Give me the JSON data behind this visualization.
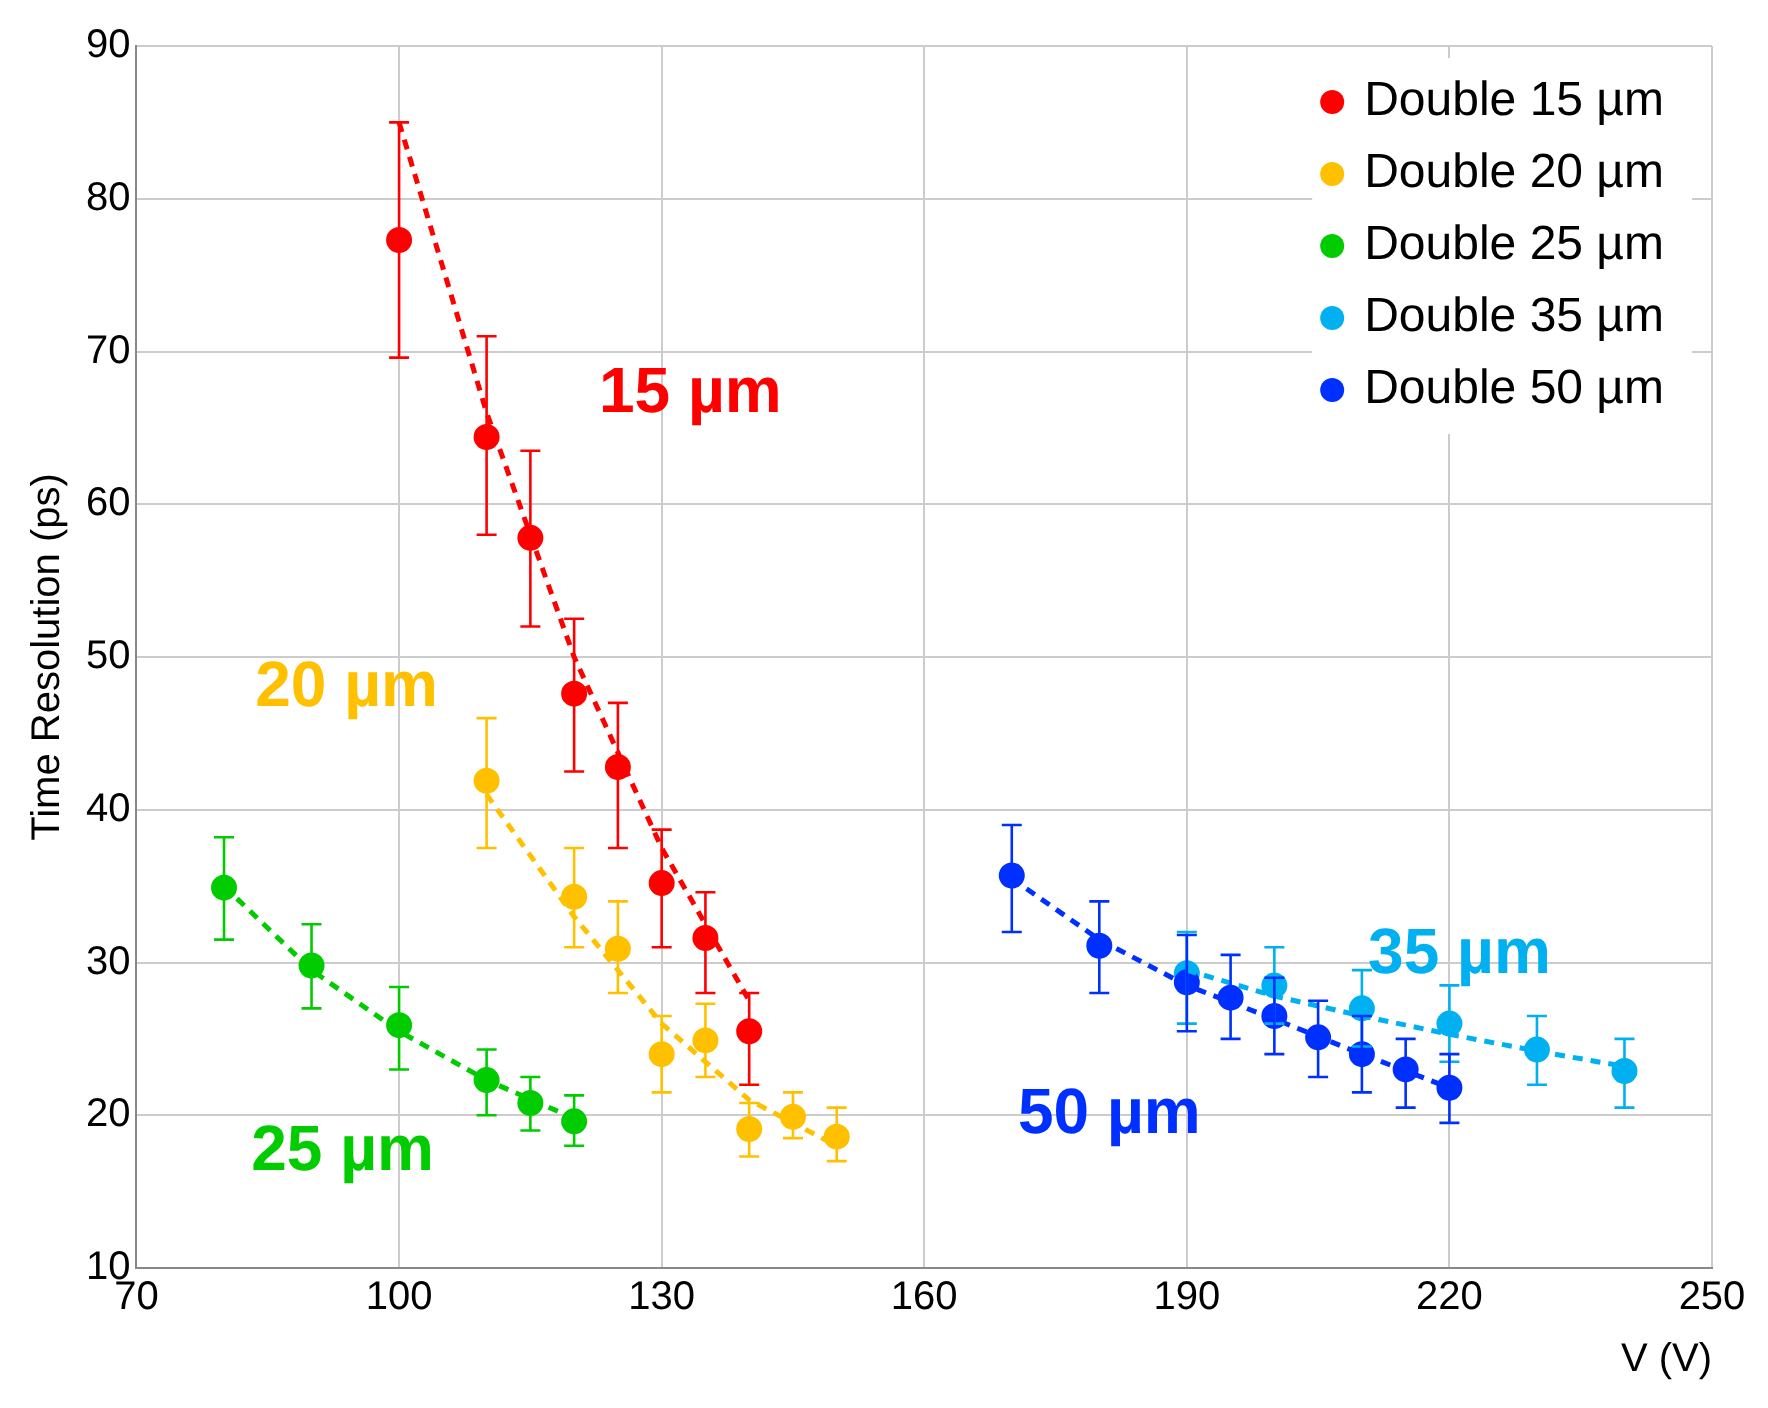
{
  "chart_data": {
    "type": "scatter",
    "xlabel": "V (V)",
    "ylabel": "Time Resolution (ps)",
    "xlim": [
      70,
      250
    ],
    "xticks": [
      70,
      100,
      130,
      160,
      190,
      220,
      250
    ],
    "ylim": [
      10,
      90
    ],
    "yticks": [
      10,
      20,
      30,
      40,
      50,
      60,
      70,
      80,
      90
    ],
    "grid": true,
    "legend": "top right",
    "marker": "circle",
    "series": [
      {
        "name": "Double 15 µm",
        "color": "#ff0000",
        "x": [
          100,
          110,
          115,
          120,
          125,
          130,
          135,
          140
        ],
        "values": [
          77.3,
          64.4,
          57.8,
          47.6,
          42.8,
          35.2,
          31.6,
          25.5
        ],
        "errors": [
          [
            69.6,
            85
          ],
          [
            58,
            71
          ],
          [
            52,
            63.5
          ],
          [
            42.5,
            52.5
          ],
          [
            37.5,
            47
          ],
          [
            31,
            38.7
          ],
          [
            28,
            34.6
          ],
          [
            22,
            28
          ]
        ]
      },
      {
        "name": "Double 20 µm",
        "color": "#ffc000",
        "x": [
          110,
          120,
          125,
          130,
          135,
          140,
          145,
          150
        ],
        "values": [
          41.9,
          34.3,
          30.9,
          24,
          24.9,
          19.1,
          19.9,
          18.6
        ],
        "errors": [
          [
            37.5,
            46
          ],
          [
            31,
            37.5
          ],
          [
            28,
            34
          ],
          [
            21.5,
            26.5
          ],
          [
            22.5,
            27.3
          ],
          [
            17.3,
            20.8
          ],
          [
            18.5,
            21.5
          ],
          [
            17,
            20.5
          ]
        ]
      },
      {
        "name": "Double 25 µm",
        "color": "#00cc00",
        "x": [
          80,
          90,
          100,
          110,
          115,
          120
        ],
        "values": [
          34.9,
          29.8,
          25.9,
          22.3,
          20.8,
          19.6
        ],
        "errors": [
          [
            31.5,
            38.2
          ],
          [
            27,
            32.5
          ],
          [
            23,
            28.4
          ],
          [
            20,
            24.3
          ],
          [
            19,
            22.5
          ],
          [
            18,
            21.3
          ]
        ]
      },
      {
        "name": "Double 35 µm",
        "color": "#00b0f0",
        "x": [
          190,
          200,
          210,
          220,
          230,
          240
        ],
        "values": [
          29.3,
          28.5,
          27,
          26,
          24.3,
          22.9
        ],
        "errors": [
          [
            26,
            32
          ],
          [
            26,
            31
          ],
          [
            24.5,
            29.5
          ],
          [
            23.5,
            28.5
          ],
          [
            22,
            26.5
          ],
          [
            20.5,
            25
          ]
        ]
      },
      {
        "name": "Double 50 µm",
        "color": "#0030ff",
        "x": [
          170,
          180,
          190,
          195,
          200,
          205,
          210,
          215,
          220
        ],
        "values": [
          35.7,
          31.1,
          28.7,
          27.7,
          26.5,
          25.1,
          24,
          23,
          21.8
        ],
        "errors": [
          [
            32,
            39
          ],
          [
            28,
            34
          ],
          [
            25.5,
            31.8
          ],
          [
            25,
            30.5
          ],
          [
            24,
            29
          ],
          [
            22.5,
            27.5
          ],
          [
            21.5,
            26.5
          ],
          [
            20.5,
            25
          ],
          [
            19.5,
            24
          ]
        ]
      },
      {
        "type": "line",
        "color": "#ff0000",
        "marker": "none",
        "line_style": "dashed",
        "x": [
          100,
          110,
          120,
          130,
          140
        ],
        "values": [
          85,
          66,
          50,
          37.5,
          27.5
        ]
      },
      {
        "type": "line",
        "color": "#ffc000",
        "marker": "none",
        "line_style": "dashed",
        "x": [
          110,
          120,
          130,
          140,
          150
        ],
        "values": [
          41,
          33,
          26,
          21,
          18
        ]
      },
      {
        "type": "line",
        "color": "#00cc00",
        "marker": "none",
        "line_style": "dashed",
        "x": [
          80,
          90,
          100,
          110,
          120
        ],
        "values": [
          35,
          29.5,
          25.5,
          22.3,
          19.8
        ]
      },
      {
        "type": "line",
        "color": "#00b0f0",
        "marker": "none",
        "line_style": "dashed",
        "x": [
          190,
          200,
          210,
          220,
          230,
          240
        ],
        "values": [
          29.5,
          27.8,
          26.5,
          25.3,
          24.2,
          23.2
        ]
      },
      {
        "type": "line",
        "color": "#0030ff",
        "marker": "none",
        "line_style": "dashed",
        "x": [
          170,
          180,
          190,
          200,
          210,
          220
        ],
        "values": [
          35.5,
          31.5,
          28.5,
          26.3,
          24,
          21.8
        ]
      }
    ],
    "annotations": [
      "15 µm",
      "20 µm",
      "25 µm",
      "35 µm",
      "50 µm"
    ]
  }
}
